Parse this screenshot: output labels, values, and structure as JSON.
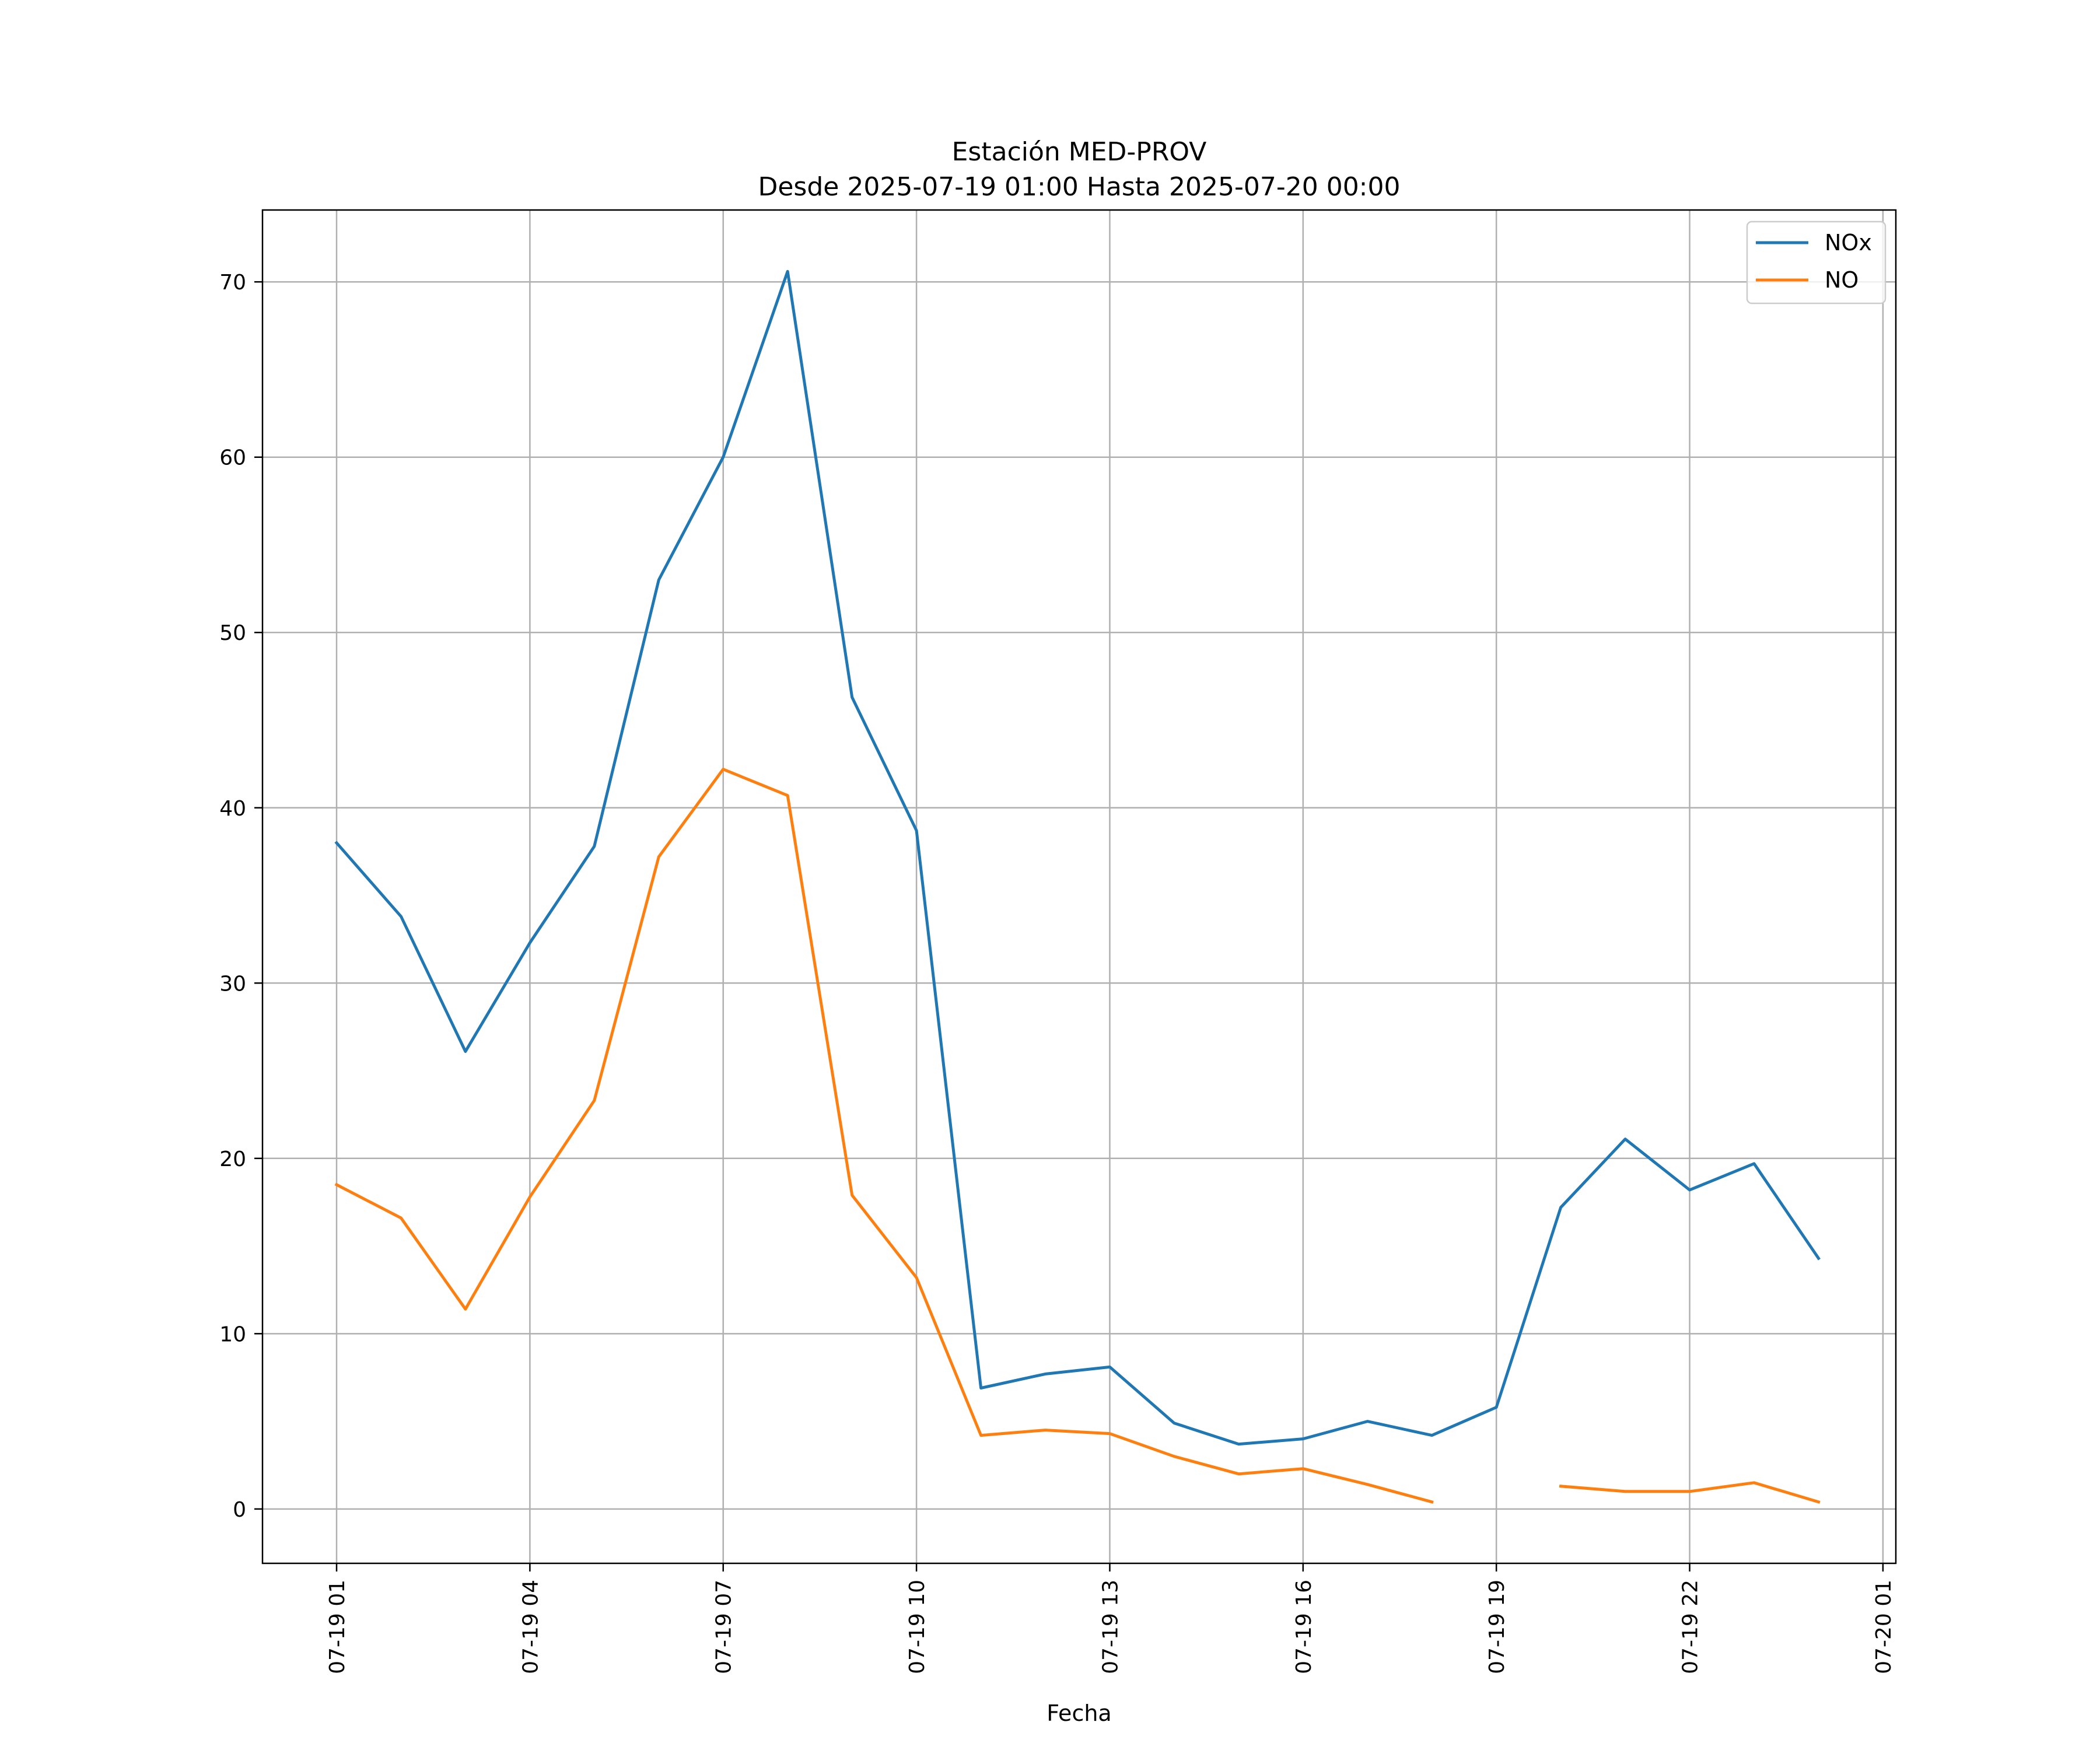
{
  "chart_data": {
    "type": "line",
    "title": "Estación MED-PROV",
    "subtitle": "Desde 2025-07-19 01:00 Hasta 2025-07-20 00:00",
    "xlabel": "Fecha",
    "ylabel": "",
    "x_ticks": [
      "07-19 01",
      "07-19 04",
      "07-19 07",
      "07-19 10",
      "07-19 13",
      "07-19 16",
      "07-19 19",
      "07-19 22",
      "07-20 01"
    ],
    "x_tick_hours": [
      1,
      4,
      7,
      10,
      13,
      16,
      19,
      22,
      25
    ],
    "y_ticks": [
      0,
      10,
      20,
      30,
      40,
      50,
      60,
      70
    ],
    "xlim": [
      -0.15,
      25.2
    ],
    "ylim": [
      -3.1,
      74.1
    ],
    "grid": true,
    "legend_position": "top-right",
    "x": [
      "2025-07-19 01:00",
      "2025-07-19 02:00",
      "2025-07-19 03:00",
      "2025-07-19 04:00",
      "2025-07-19 05:00",
      "2025-07-19 06:00",
      "2025-07-19 07:00",
      "2025-07-19 08:00",
      "2025-07-19 09:00",
      "2025-07-19 10:00",
      "2025-07-19 11:00",
      "2025-07-19 12:00",
      "2025-07-19 13:00",
      "2025-07-19 14:00",
      "2025-07-19 15:00",
      "2025-07-19 16:00",
      "2025-07-19 17:00",
      "2025-07-19 18:00",
      "2025-07-19 19:00",
      "2025-07-19 20:00",
      "2025-07-19 21:00",
      "2025-07-19 22:00",
      "2025-07-19 23:00",
      "2025-07-20 00:00"
    ],
    "series": [
      {
        "name": "NOx",
        "color": "#1f77b4",
        "values": [
          38.0,
          33.8,
          26.1,
          32.3,
          37.8,
          53.0,
          60.0,
          70.6,
          46.3,
          38.7,
          6.9,
          7.7,
          8.1,
          4.9,
          3.7,
          4.0,
          5.0,
          4.2,
          5.8,
          17.2,
          21.1,
          18.2,
          19.7,
          14.3
        ]
      },
      {
        "name": "NO",
        "color": "#ff7f0e",
        "values": [
          18.5,
          16.6,
          11.4,
          17.8,
          23.3,
          37.2,
          42.2,
          40.7,
          17.9,
          13.2,
          4.2,
          4.5,
          4.3,
          3.0,
          2.0,
          2.3,
          1.4,
          0.4,
          null,
          1.3,
          1.0,
          1.0,
          1.5,
          0.4
        ]
      }
    ]
  }
}
